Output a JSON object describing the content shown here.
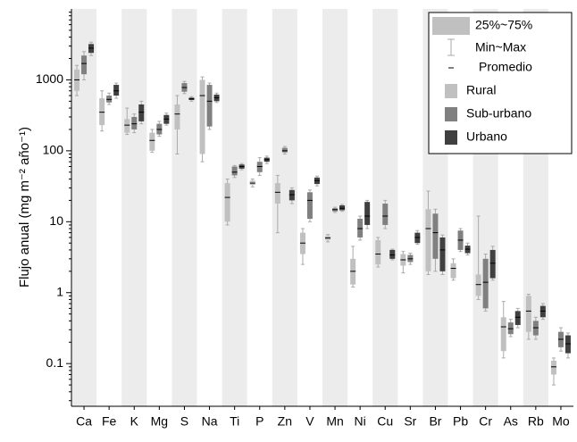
{
  "chart_data": {
    "type": "box",
    "y_label": "Flujo anual (mg m⁻² año⁻¹)",
    "log_y": true,
    "ylim": [
      0.025,
      10000
    ],
    "yticks": [
      0.1,
      1,
      10,
      100,
      1000
    ],
    "shaded_bands": true,
    "legend_position": "top-right",
    "stat_labels": [
      "25%~75%",
      "Min~Max",
      "Promedio"
    ],
    "categories": [
      "Ca",
      "Fe",
      "K",
      "Mg",
      "S",
      "Na",
      "Ti",
      "P",
      "Zn",
      "V",
      "Mn",
      "Ni",
      "Cu",
      "Sr",
      "Br",
      "Pb",
      "Cr",
      "As",
      "Rb",
      "Mo"
    ],
    "series": [
      {
        "name": "Rural",
        "color": "#c0c0c0",
        "min": [
          600,
          190,
          170,
          95,
          90,
          70,
          9,
          31,
          7,
          2.5,
          5.2,
          1.2,
          2.3,
          1.9,
          1.8,
          1.5,
          0.8,
          0.12,
          0.22,
          0.05
        ],
        "q1": [
          700,
          230,
          180,
          100,
          200,
          90,
          10,
          33,
          18,
          3.5,
          5.5,
          1.3,
          2.5,
          2.4,
          2,
          1.6,
          0.9,
          0.15,
          0.28,
          0.07
        ],
        "mean": [
          1000,
          350,
          230,
          140,
          330,
          600,
          22,
          35,
          26,
          5,
          5.9,
          2,
          3.5,
          2.9,
          8,
          2.2,
          1.3,
          0.33,
          0.55,
          0.09
        ],
        "q3": [
          1400,
          550,
          280,
          180,
          450,
          1000,
          35,
          38,
          35,
          7,
          6.3,
          3,
          5.5,
          3.5,
          15,
          2.6,
          1.8,
          0.45,
          0.9,
          0.11
        ],
        "max": [
          1600,
          700,
          400,
          200,
          600,
          1100,
          40,
          40,
          45,
          8,
          6.6,
          4.5,
          6,
          3.8,
          27,
          3,
          12,
          0.75,
          0.95,
          0.12
        ]
      },
      {
        "name": "Sub-urbano",
        "color": "#808080",
        "min": [
          1000,
          450,
          180,
          160,
          640,
          200,
          42,
          45,
          90,
          10,
          13.5,
          5.5,
          8,
          2.5,
          2,
          3.8,
          0.55,
          0.24,
          0.22,
          0.15
        ],
        "q1": [
          1200,
          480,
          200,
          170,
          680,
          220,
          45,
          50,
          95,
          11,
          14,
          6,
          9,
          2.7,
          3,
          4,
          0.6,
          0.26,
          0.25,
          0.17
        ],
        "mean": [
          1700,
          530,
          240,
          200,
          780,
          500,
          50,
          60,
          100,
          20,
          14.8,
          8,
          12,
          3,
          7,
          5.5,
          1.4,
          0.31,
          0.32,
          0.22
        ],
        "q3": [
          2200,
          600,
          300,
          240,
          900,
          850,
          60,
          70,
          110,
          26,
          15.5,
          11,
          18,
          3.4,
          13,
          7.5,
          3,
          0.38,
          0.4,
          0.28
        ],
        "max": [
          2500,
          650,
          330,
          260,
          950,
          900,
          62,
          80,
          115,
          28,
          16,
          12,
          20,
          3.6,
          15,
          8,
          3.5,
          0.42,
          0.45,
          0.32
        ]
      },
      {
        "name": "Urbano",
        "color": "#404040",
        "min": [
          2200,
          550,
          240,
          230,
          500,
          480,
          54,
          66,
          18,
          32,
          14,
          8,
          2.9,
          4.8,
          1.8,
          3.4,
          1.5,
          0.32,
          0.42,
          0.12
        ],
        "q1": [
          2400,
          600,
          260,
          240,
          520,
          500,
          56,
          70,
          20,
          34,
          14.5,
          9,
          3,
          5,
          2,
          3.6,
          1.6,
          0.35,
          0.45,
          0.14
        ],
        "mean": [
          2800,
          700,
          350,
          280,
          540,
          560,
          60,
          75,
          24,
          38,
          15.5,
          12,
          3.4,
          6,
          4,
          4.1,
          2.6,
          0.45,
          0.55,
          0.19
        ],
        "q3": [
          3200,
          850,
          450,
          320,
          560,
          620,
          64,
          80,
          28,
          42,
          17,
          19,
          4,
          7,
          6,
          4.6,
          4,
          0.55,
          0.65,
          0.25
        ],
        "max": [
          3400,
          900,
          500,
          340,
          580,
          650,
          66,
          84,
          30,
          44,
          17.5,
          20,
          4.1,
          7.5,
          6.5,
          5,
          4.5,
          0.6,
          0.7,
          0.27
        ]
      }
    ]
  }
}
